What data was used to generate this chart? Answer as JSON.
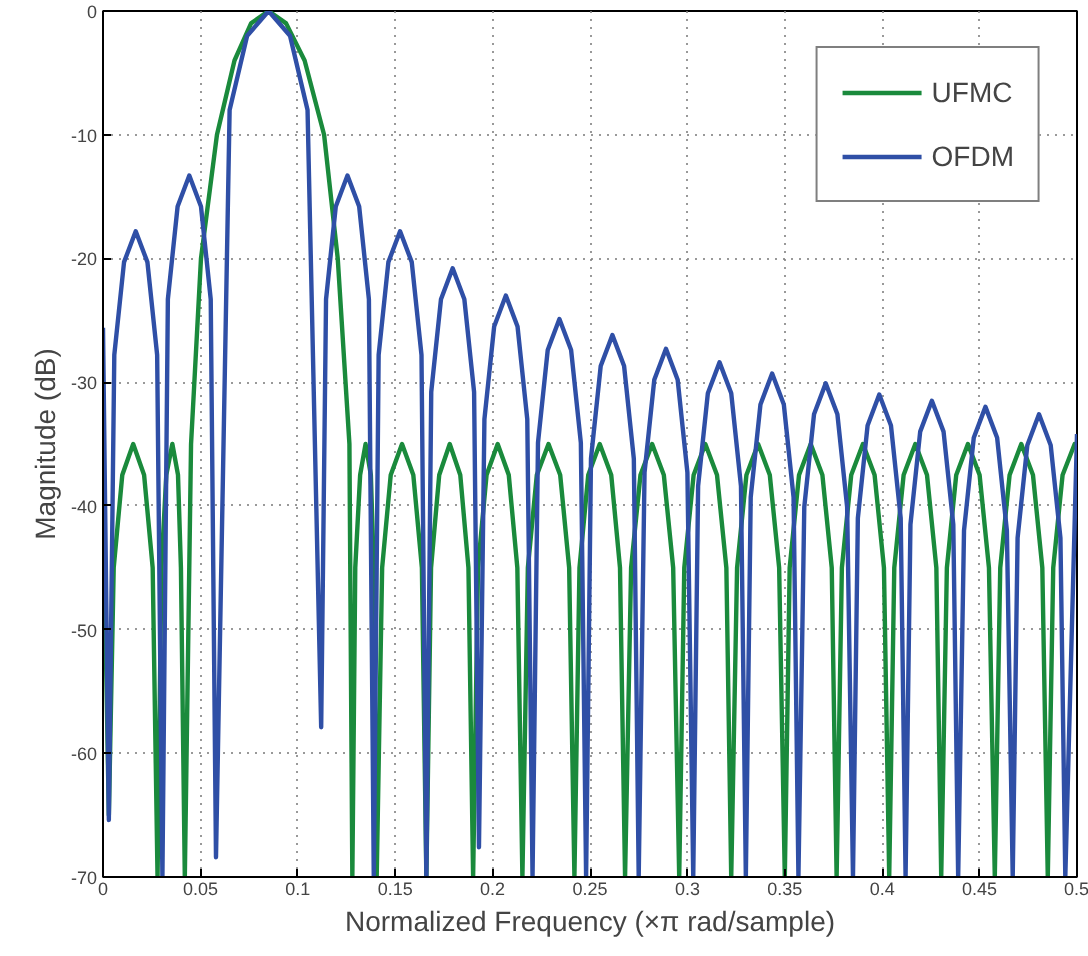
{
  "chart_data": {
    "type": "line",
    "xlabel": "Normalized Frequency (×π rad/sample)",
    "ylabel": "Magnitude (dB)",
    "xlim": [
      0,
      0.5
    ],
    "ylim": [
      -70,
      0
    ],
    "xticks": [
      0,
      0.05,
      0.1,
      0.15,
      0.2,
      0.25,
      0.3,
      0.35,
      0.4,
      0.45,
      0.5
    ],
    "yticks": [
      -70,
      -60,
      -50,
      -40,
      -30,
      -20,
      -10,
      0
    ],
    "grid": true,
    "legend": "top right",
    "line_style": "solid",
    "marker": "none",
    "series": [
      {
        "name": "UFMC",
        "color": "#1a8a3c",
        "x": [
          0,
          0.003,
          0.0055,
          0.0099,
          0.0155,
          0.0211,
          0.0255,
          0.028,
          0.03,
          0.0325,
          0.0356,
          0.0385,
          0.04,
          0.042,
          0.0452,
          0.0503,
          0.0585,
          0.0675,
          0.076,
          0.085,
          0.094,
          0.1035,
          0.1135,
          0.1205,
          0.1265,
          0.128,
          0.1295,
          0.132,
          0.1348,
          0.1375,
          0.139,
          0.1405,
          0.1433,
          0.1477,
          0.1535,
          0.1593,
          0.1637,
          0.166,
          0.1684,
          0.1726,
          0.178,
          0.1834,
          0.1876,
          0.19,
          0.1925,
          0.1969,
          0.2026,
          0.2083,
          0.2127,
          0.2153,
          0.2181,
          0.2227,
          0.2287,
          0.2347,
          0.2393,
          0.242,
          0.2446,
          0.2491,
          0.255,
          0.2609,
          0.2654,
          0.268,
          0.2711,
          0.2759,
          0.2819,
          0.2879,
          0.2927,
          0.2958,
          0.2984,
          0.3032,
          0.3092,
          0.3152,
          0.32,
          0.3225,
          0.3255,
          0.3303,
          0.3363,
          0.3423,
          0.3471,
          0.35,
          0.3525,
          0.3573,
          0.3633,
          0.3693,
          0.3741,
          0.3766,
          0.3793,
          0.3841,
          0.3901,
          0.3961,
          0.4009,
          0.4036,
          0.4062,
          0.411,
          0.417,
          0.423,
          0.4278,
          0.4303,
          0.4332,
          0.438,
          0.444,
          0.45,
          0.4548,
          0.4578,
          0.4606,
          0.4654,
          0.4714,
          0.4774,
          0.4822,
          0.485,
          0.4878,
          0.4926,
          0.4988,
          0.5
        ],
        "values": [
          -38.8,
          -65,
          -45,
          -37.5,
          -35,
          -37.5,
          -45,
          -70,
          -45,
          -37.5,
          -35,
          -37.5,
          -45,
          -70,
          -35,
          -20,
          -10,
          -4,
          -1,
          0,
          -1,
          -4,
          -10,
          -20,
          -35,
          -70,
          -45,
          -37.5,
          -35,
          -37.5,
          -45,
          -70,
          -45,
          -37.5,
          -35,
          -37.5,
          -45,
          -70,
          -45,
          -37.5,
          -35,
          -37.5,
          -45,
          -70,
          -45,
          -37.5,
          -35,
          -37.5,
          -45,
          -70,
          -45,
          -37.5,
          -35,
          -37.5,
          -45,
          -70,
          -45,
          -37.5,
          -35,
          -37.5,
          -45,
          -70,
          -45,
          -37.5,
          -35,
          -37.5,
          -45,
          -70,
          -45,
          -37.5,
          -35,
          -37.5,
          -45,
          -70,
          -45,
          -37.5,
          -35,
          -37.5,
          -45,
          -70,
          -45,
          -37.5,
          -35,
          -37.5,
          -45,
          -70,
          -45,
          -37.5,
          -35,
          -37.5,
          -45,
          -70,
          -45,
          -37.5,
          -35,
          -37.5,
          -45,
          -70,
          -45,
          -37.5,
          -35,
          -37.5,
          -45,
          -70,
          -45,
          -37.5,
          -35,
          -37.5,
          -45,
          -70,
          -45,
          -37.5,
          -35,
          -35.2
        ]
      },
      {
        "name": "OFDM",
        "color": "#2f4fa6",
        "x": [
          0,
          0.003,
          0.0058,
          0.0108,
          0.0168,
          0.0228,
          0.0278,
          0.0305,
          0.0333,
          0.0383,
          0.0443,
          0.0503,
          0.0553,
          0.058,
          0.065,
          0.074,
          0.085,
          0.096,
          0.105,
          0.112,
          0.1145,
          0.1195,
          0.1255,
          0.1315,
          0.1365,
          0.139,
          0.1415,
          0.1465,
          0.1525,
          0.1585,
          0.1635,
          0.166,
          0.1685,
          0.1735,
          0.1795,
          0.1855,
          0.1905,
          0.193,
          0.1958,
          0.2008,
          0.2068,
          0.2128,
          0.2178,
          0.2205,
          0.2233,
          0.2283,
          0.2343,
          0.2403,
          0.2453,
          0.248,
          0.2505,
          0.2555,
          0.2615,
          0.2675,
          0.2725,
          0.275,
          0.278,
          0.283,
          0.289,
          0.295,
          0.3,
          0.303,
          0.3055,
          0.3105,
          0.3165,
          0.3225,
          0.3275,
          0.33,
          0.3325,
          0.3375,
          0.3435,
          0.3495,
          0.3545,
          0.357,
          0.36,
          0.365,
          0.371,
          0.377,
          0.382,
          0.385,
          0.3875,
          0.3925,
          0.3985,
          0.4045,
          0.4095,
          0.412,
          0.4145,
          0.4195,
          0.4255,
          0.4315,
          0.4365,
          0.439,
          0.442,
          0.447,
          0.453,
          0.459,
          0.464,
          0.467,
          0.4695,
          0.4745,
          0.4805,
          0.4865,
          0.4915,
          0.494,
          0.5
        ],
        "values": [
          -25.6,
          -65.4,
          -27.8,
          -20.3,
          -17.8,
          -20.3,
          -27.8,
          -70,
          -23.3,
          -15.8,
          -13.3,
          -15.8,
          -23.3,
          -68.4,
          -8,
          -2,
          0,
          -2,
          -8,
          -57.9,
          -23.3,
          -15.8,
          -13.3,
          -15.8,
          -23.3,
          -70,
          -27.8,
          -20.3,
          -17.8,
          -20.3,
          -27.8,
          -70,
          -30.8,
          -23.3,
          -20.8,
          -23.3,
          -30.8,
          -67.6,
          -33,
          -25.5,
          -23,
          -25.5,
          -33,
          -70,
          -34.9,
          -27.4,
          -24.9,
          -27.4,
          -34.9,
          -70,
          -36.2,
          -28.7,
          -26.2,
          -28.7,
          -36.2,
          -70,
          -37.3,
          -29.8,
          -27.3,
          -29.8,
          -37.3,
          -70,
          -38.4,
          -30.9,
          -28.4,
          -30.9,
          -38.4,
          -70,
          -39.3,
          -31.8,
          -29.3,
          -31.8,
          -39.3,
          -70,
          -40.1,
          -32.6,
          -30.1,
          -32.6,
          -40.1,
          -70,
          -41,
          -33.5,
          -31,
          -33.5,
          -41,
          -70,
          -41.5,
          -34,
          -31.5,
          -34,
          -41.5,
          -70,
          -42,
          -34.5,
          -32,
          -34.5,
          -42,
          -70,
          -42.6,
          -35.1,
          -32.6,
          -35.1,
          -42.6,
          -70,
          -34.2
        ]
      }
    ]
  }
}
